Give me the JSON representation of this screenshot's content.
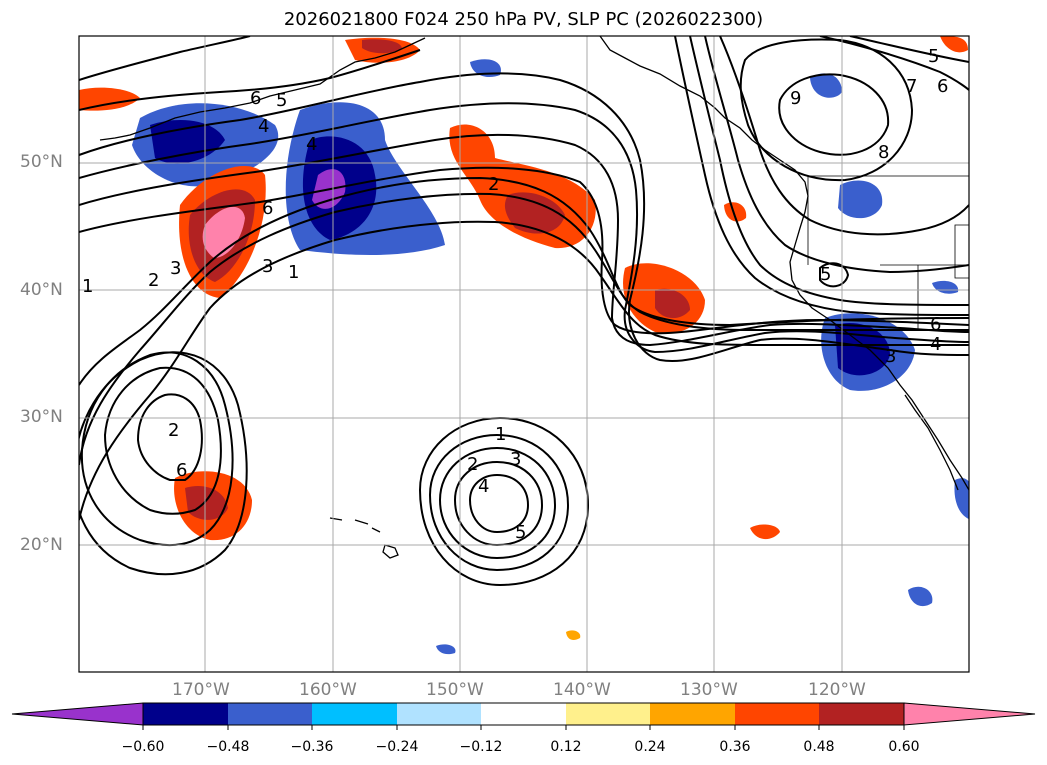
{
  "title": "2026021800 F024 250 hPa PV, SLP PC (2026022300)",
  "map": {
    "lat_labels": [
      "50°N",
      "40°N",
      "30°N",
      "20°N"
    ],
    "lon_labels": [
      "170°W",
      "160°W",
      "150°W",
      "140°W",
      "130°W",
      "120°W"
    ],
    "contour_labels": [
      "6",
      "5",
      "4",
      "4",
      "2",
      "3",
      "1",
      "2",
      "3",
      "1",
      "6",
      "6",
      "2",
      "1",
      "2",
      "3",
      "4",
      "5",
      "9",
      "7",
      "6",
      "8",
      "5",
      "6",
      "4",
      "3",
      "5"
    ]
  },
  "colorbar": {
    "ticks": [
      "−0.60",
      "−0.48",
      "−0.36",
      "−0.24",
      "−0.12",
      "0.12",
      "0.24",
      "0.36",
      "0.48",
      "0.60"
    ],
    "colors": [
      "#9932cc",
      "#00008b",
      "#3a5fcd",
      "#00bfff",
      "#b0e2ff",
      "#ffffff",
      "#fff08c",
      "#ffa500",
      "#ff4500",
      "#b22222",
      "#ff82ab"
    ]
  }
}
